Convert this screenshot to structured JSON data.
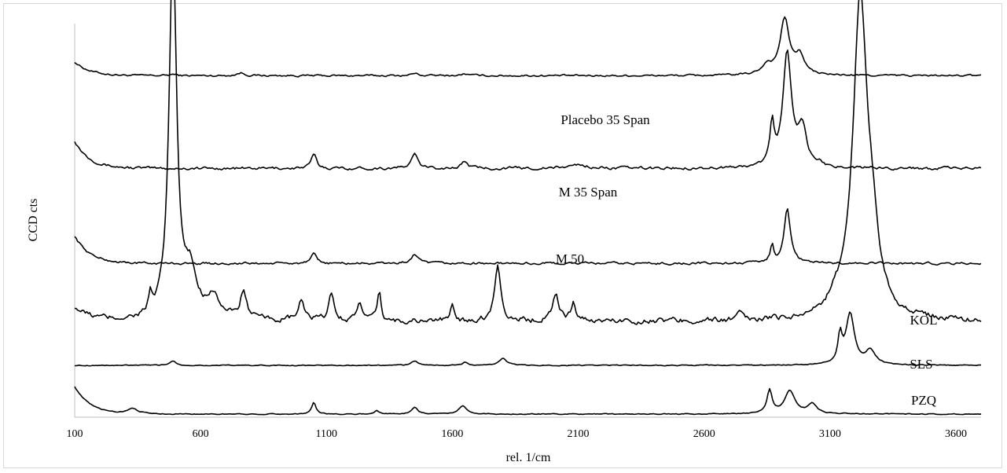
{
  "chart_data": {
    "type": "line",
    "xlabel": "rel. 1/cm",
    "ylabel": "CCD cts",
    "xlim": [
      100,
      3700
    ],
    "x_ticks": [
      "100",
      "600",
      "1100",
      "1600",
      "2100",
      "2600",
      "3100",
      "3600"
    ],
    "y_ticks_shown": false,
    "grid": false,
    "line_color": "#000000",
    "series": [
      {
        "name": "Placebo 35 Span",
        "baseline": 0.73,
        "noise": 0.004,
        "edge": 0.03,
        "peaks": [
          [
            490,
            0.003,
            15
          ],
          [
            760,
            0.006,
            18
          ],
          [
            1450,
            0.005,
            15
          ],
          [
            1650,
            0.004,
            15
          ],
          [
            2850,
            0.02,
            25
          ],
          [
            2920,
            0.12,
            22
          ],
          [
            2980,
            0.04,
            22
          ]
        ]
      },
      {
        "name": "M 35 Span",
        "baseline": 0.53,
        "noise": 0.006,
        "edge": 0.06,
        "peaks": [
          [
            1050,
            0.03,
            12
          ],
          [
            1450,
            0.03,
            15
          ],
          [
            1650,
            0.015,
            15
          ],
          [
            2100,
            0.008,
            40
          ],
          [
            2870,
            0.09,
            10
          ],
          [
            2930,
            0.25,
            20
          ],
          [
            2990,
            0.08,
            20
          ],
          [
            3060,
            0.01,
            10
          ]
        ]
      },
      {
        "name": "M 50",
        "baseline": 0.325,
        "noise": 0.005,
        "edge": 0.06,
        "peaks": [
          [
            1050,
            0.02,
            12
          ],
          [
            1450,
            0.02,
            15
          ],
          [
            2870,
            0.04,
            8
          ],
          [
            2930,
            0.12,
            15
          ]
        ]
      },
      {
        "name": "KOL",
        "baseline": 0.2,
        "noise": 0.012,
        "edge": 0.03,
        "peaks": [
          [
            400,
            0.035,
            8
          ],
          [
            490,
            0.8,
            18
          ],
          [
            560,
            0.09,
            30
          ],
          [
            650,
            0.05,
            30
          ],
          [
            770,
            0.06,
            15
          ],
          [
            1000,
            0.04,
            15
          ],
          [
            1120,
            0.06,
            12
          ],
          [
            1230,
            0.04,
            12
          ],
          [
            1310,
            0.06,
            8
          ],
          [
            1600,
            0.03,
            10
          ],
          [
            1780,
            0.12,
            15
          ],
          [
            2010,
            0.06,
            15
          ],
          [
            2080,
            0.04,
            10
          ],
          [
            2740,
            0.015,
            10
          ],
          [
            3120,
            0.02,
            30
          ],
          [
            3220,
            0.68,
            35
          ],
          [
            3270,
            0.11,
            30
          ]
        ]
      },
      {
        "name": "SLS",
        "baseline": 0.105,
        "noise": 0.002,
        "edge": 0.0,
        "peaks": [
          [
            490,
            0.01,
            15
          ],
          [
            1450,
            0.01,
            15
          ],
          [
            1650,
            0.006,
            12
          ],
          [
            1800,
            0.015,
            18
          ],
          [
            3140,
            0.06,
            10
          ],
          [
            3180,
            0.11,
            20
          ],
          [
            3260,
            0.03,
            25
          ]
        ]
      },
      {
        "name": "PZQ",
        "baseline": 0.0,
        "noise": 0.002,
        "edge": 0.06,
        "peaks": [
          [
            330,
            0.012,
            25
          ],
          [
            1050,
            0.025,
            10
          ],
          [
            1300,
            0.008,
            10
          ],
          [
            1450,
            0.015,
            15
          ],
          [
            1640,
            0.018,
            18
          ],
          [
            2860,
            0.05,
            12
          ],
          [
            2940,
            0.05,
            25
          ],
          [
            3030,
            0.022,
            20
          ]
        ]
      }
    ]
  }
}
